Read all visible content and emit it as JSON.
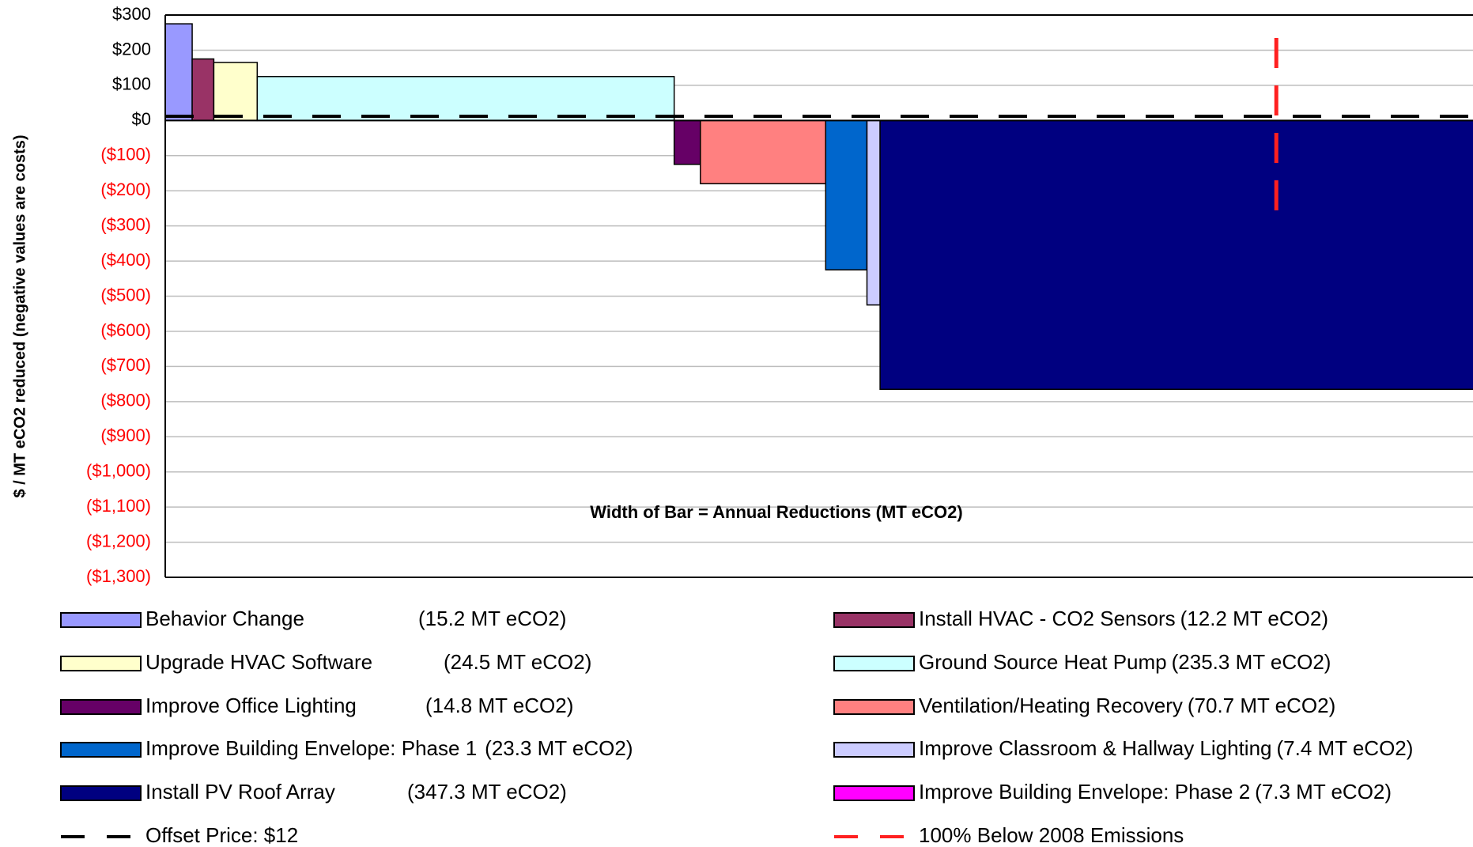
{
  "chart_data": {
    "type": "cost_curve",
    "y_axis_label": "$ / MT eCO2 reduced (negative values are costs)",
    "annotation": "Width of Bar = Annual Reductions (MT eCO2)",
    "xlim": [
      0,
      738
    ],
    "ylim": [
      -1300,
      300
    ],
    "grid": true,
    "negative_label_color": "#ff0000",
    "yticks": [
      {
        "value": 300,
        "label": "$300"
      },
      {
        "value": 200,
        "label": "$200"
      },
      {
        "value": 100,
        "label": "$100"
      },
      {
        "value": 0,
        "label": "$0"
      },
      {
        "value": -100,
        "label": "($100)"
      },
      {
        "value": -200,
        "label": "($200)"
      },
      {
        "value": -300,
        "label": "($300)"
      },
      {
        "value": -400,
        "label": "($400)"
      },
      {
        "value": -500,
        "label": "($500)"
      },
      {
        "value": -600,
        "label": "($600)"
      },
      {
        "value": -700,
        "label": "($700)"
      },
      {
        "value": -800,
        "label": "($800)"
      },
      {
        "value": -900,
        "label": "($900)"
      },
      {
        "value": -1000,
        "label": "($1,000)"
      },
      {
        "value": -1100,
        "label": "($1,100)"
      },
      {
        "value": -1200,
        "label": "($1,200)"
      },
      {
        "value": -1300,
        "label": "($1,300)"
      }
    ],
    "series": [
      {
        "name": "Behavior Change",
        "color": "#9999ff",
        "width": 15.2,
        "width_label": "(15.2 MT eCO2)",
        "value": 275
      },
      {
        "name": "Install HVAC - CO2 Sensors",
        "color": "#993366",
        "width": 12.2,
        "width_label": "(12.2 MT eCO2)",
        "value": 175
      },
      {
        "name": "Upgrade HVAC Software",
        "color": "#ffffcc",
        "width": 24.5,
        "width_label": "(24.5 MT eCO2)",
        "value": 165
      },
      {
        "name": "Ground Source Heat Pump",
        "color": "#ccffff",
        "width": 235.3,
        "width_label": "(235.3 MT eCO2)",
        "value": 125
      },
      {
        "name": "Improve Office Lighting",
        "color": "#660066",
        "width": 14.8,
        "width_label": "(14.8 MT eCO2)",
        "value": -125
      },
      {
        "name": "Ventilation/Heating Recovery",
        "color": "#ff8080",
        "width": 70.7,
        "width_label": "(70.7 MT eCO2)",
        "value": -180
      },
      {
        "name": "Improve Building Envelope: Phase 1",
        "color": "#0066cc",
        "width": 23.3,
        "width_label": "(23.3 MT eCO2)",
        "value": -425
      },
      {
        "name": "Improve Classroom & Hallway Lighting",
        "color": "#ccccff",
        "width": 7.4,
        "width_label": "(7.4 MT eCO2)",
        "value": -525
      },
      {
        "name": "Install PV Roof Array",
        "color": "#000080",
        "width": 347.3,
        "width_label": "(347.3 MT eCO2)",
        "value": -765
      },
      {
        "name": "Improve Building Envelope: Phase 2",
        "color": "#ff00ff",
        "width": 7.3,
        "width_label": "(7.3 MT eCO2)",
        "value": null
      }
    ],
    "offset": {
      "label": "Offset Price: $12",
      "value": 12,
      "color": "#000000"
    },
    "target": {
      "label": "100% Below 2008 Emissions",
      "x": 627,
      "color": "#ff2020"
    }
  }
}
